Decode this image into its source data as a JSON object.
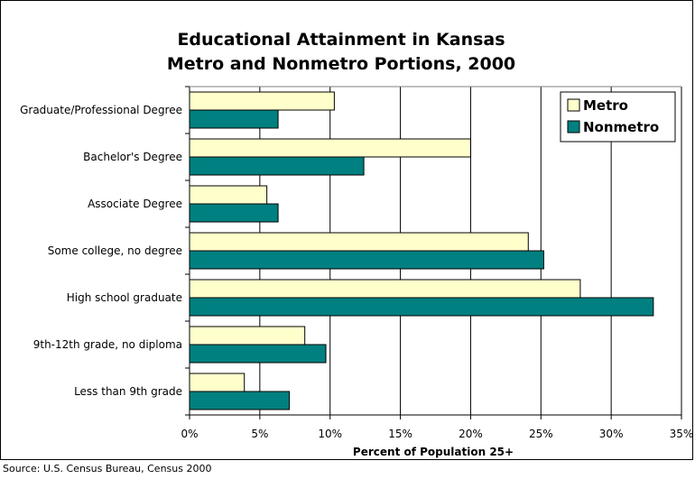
{
  "chart_data": {
    "type": "bar",
    "orientation": "horizontal",
    "title": [
      "Educational Attainment in Kansas",
      "Metro and Nonmetro Portions, 2000"
    ],
    "xlabel": "Percent of Population 25+",
    "ylabel": "",
    "xlim": [
      0,
      35
    ],
    "x_ticks": [
      "0%",
      "5%",
      "10%",
      "15%",
      "20%",
      "25%",
      "30%",
      "35%"
    ],
    "grid": true,
    "legend_position": "top-right",
    "categories": [
      "Graduate/Professional Degree",
      "Bachelor's Degree",
      "Associate Degree",
      "Some college, no degree",
      "High school graduate",
      "9th-12th grade, no diploma",
      "Less than 9th grade"
    ],
    "series": [
      {
        "name": "Metro",
        "color": "#FFFFCC",
        "values": [
          10.3,
          20.0,
          5.5,
          24.1,
          27.8,
          8.2,
          3.9
        ]
      },
      {
        "name": "Nonmetro",
        "color": "#008080",
        "values": [
          6.3,
          12.4,
          6.3,
          25.2,
          33.0,
          9.7,
          7.1
        ]
      }
    ]
  },
  "source": "Source: U.S. Census Bureau, Census 2000"
}
